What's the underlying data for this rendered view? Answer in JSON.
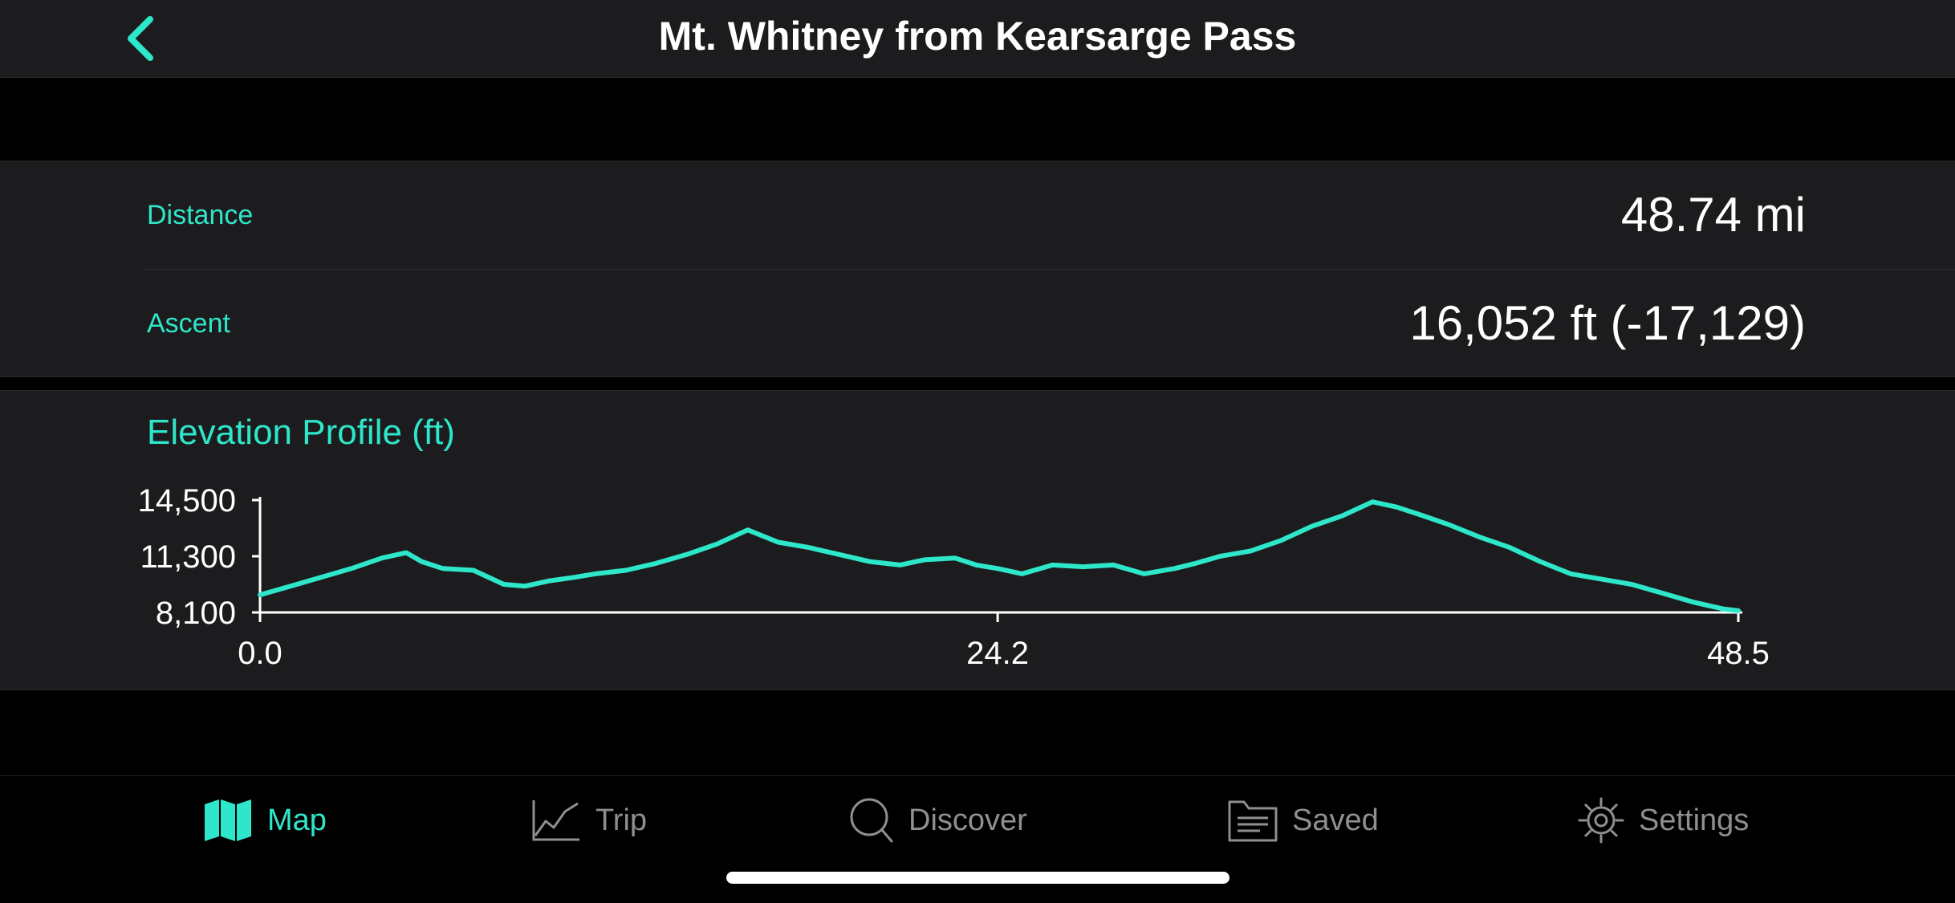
{
  "header": {
    "title": "Mt. Whitney from Kearsarge Pass",
    "back_icon": "chevron-left-icon"
  },
  "stats": {
    "distance": {
      "label": "Distance",
      "value": "48.74 mi"
    },
    "ascent": {
      "label": "Ascent",
      "value": "16,052 ft (-17,129)"
    }
  },
  "profile": {
    "title": "Elevation Profile (ft)"
  },
  "chart_data": {
    "type": "line",
    "title": "Elevation Profile (ft)",
    "xlabel": "",
    "ylabel": "",
    "xlim": [
      0,
      48.5
    ],
    "ylim": [
      8100,
      14500
    ],
    "x_ticks": [
      "0.0",
      "24.2",
      "48.5"
    ],
    "y_ticks": [
      "14,500",
      "11,300",
      "8,100"
    ],
    "grid": false,
    "line_color": "#2ee6c9",
    "series": [
      {
        "name": "",
        "x": [
          0.0,
          1.0,
          2.0,
          3.0,
          4.0,
          4.8,
          5.3,
          6.0,
          7.0,
          8.0,
          8.7,
          9.5,
          10.3,
          11.0,
          12.0,
          13.0,
          14.0,
          15.0,
          16.0,
          17.0,
          18.0,
          19.0,
          20.0,
          21.0,
          21.8,
          22.8,
          23.5,
          24.2,
          25.0,
          26.0,
          27.0,
          28.0,
          29.0,
          30.0,
          30.7,
          31.5,
          32.5,
          33.5,
          34.5,
          35.5,
          36.5,
          37.3,
          38.0,
          39.0,
          40.0,
          41.0,
          42.0,
          43.0,
          44.0,
          45.0,
          46.0,
          47.0,
          48.0,
          48.5
        ],
        "y": [
          9100,
          9600,
          10100,
          10600,
          11200,
          11500,
          11000,
          10600,
          10500,
          9700,
          9600,
          9900,
          10100,
          10300,
          10500,
          10900,
          11400,
          12000,
          12800,
          12100,
          11800,
          11400,
          11000,
          10800,
          11100,
          11200,
          10800,
          10600,
          10300,
          10800,
          10700,
          10800,
          10300,
          10600,
          10900,
          11300,
          11600,
          12200,
          13000,
          13600,
          14400,
          14100,
          13700,
          13100,
          12400,
          11800,
          11000,
          10300,
          10000,
          9700,
          9200,
          8700,
          8300,
          8200
        ]
      }
    ]
  },
  "tabs": [
    {
      "label": "Map",
      "icon": "map-icon",
      "active": true
    },
    {
      "label": "Trip",
      "icon": "trip-chart-icon",
      "active": false
    },
    {
      "label": "Discover",
      "icon": "search-icon",
      "active": false
    },
    {
      "label": "Saved",
      "icon": "folder-icon",
      "active": false
    },
    {
      "label": "Settings",
      "icon": "gear-icon",
      "active": false
    }
  ]
}
